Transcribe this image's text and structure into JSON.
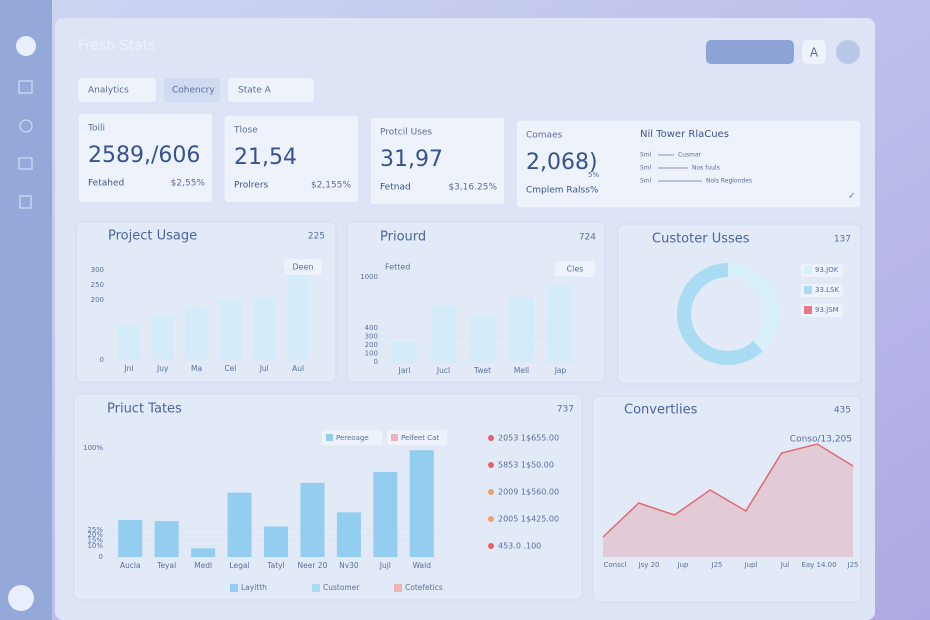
{
  "header": {
    "title": "Fresh Stats",
    "user_button": "A"
  },
  "filters": [
    "Analytics",
    "Cohencry",
    "State A"
  ],
  "kpis": [
    {
      "label": "Toili",
      "value": "2589,/606",
      "sub": "Fetahed",
      "change": "$2,55%"
    },
    {
      "label": "Tlose",
      "value": "21,54",
      "sub": "Prolrers",
      "change": "$2,155%"
    },
    {
      "label": "Protcil Uses",
      "value": "31,97",
      "sub": "Fetnad",
      "change": "$3,16.25%"
    },
    {
      "label": "Comaes",
      "value": "2,068)",
      "sub": "Cmplem Ralss%",
      "note": "5%",
      "side_title": "Nil Tower RlaCues",
      "side_rows": [
        [
          "Sml",
          "Cusmar"
        ],
        [
          "Sml",
          "Nos fuuls"
        ],
        [
          "Sml",
          "Nols Reglondes"
        ]
      ]
    }
  ],
  "usage": {
    "type": "bar",
    "title": "Project Usage",
    "badge": "225",
    "button": "Deen",
    "categories": [
      "Jnl",
      "Juy",
      "Ma",
      "Cel",
      "Jul",
      "Aul"
    ],
    "values": [
      113,
      147,
      177,
      203,
      207,
      283
    ],
    "color": "#d4ecf9",
    "ylim": [
      0,
      300
    ],
    "yticks": [
      0,
      200,
      250,
      300
    ]
  },
  "priourd": {
    "type": "bar",
    "title": "Priourd",
    "badge": "724",
    "button": "Cles",
    "legend": "Fetted",
    "categories": [
      "Jarl",
      "Jucl",
      "Twet",
      "Mell",
      "Jap"
    ],
    "values": [
      247,
      659,
      541,
      765,
      894
    ],
    "color": "#d4ecf9",
    "ylim": [
      0,
      1000
    ],
    "yticks": [
      0,
      100,
      200,
      300,
      400,
      1000
    ]
  },
  "customers": {
    "type": "pie",
    "title": "Custoter Usses",
    "badge": "137",
    "labels": [
      "93.JOK",
      "33.LSK",
      "93.JSM"
    ],
    "values": [
      38,
      62,
      0
    ],
    "colors": [
      "#d8f0fa",
      "#a9dcf3",
      "#e57a86"
    ]
  },
  "tates": {
    "type": "bar",
    "title": "Priuct Tates",
    "badge": "737",
    "chips": [
      "Pereoage",
      "Pelfeet Cat"
    ],
    "categories": [
      "Aucla",
      "Teyal",
      "Medl",
      "Legal",
      "Tatyl",
      "Neer 20",
      "Nv30",
      "Jujl",
      "Wald"
    ],
    "values": [
      34,
      33,
      8,
      59,
      28,
      68,
      41,
      78,
      98
    ],
    "color": "#93cdf0",
    "ylim": [
      0,
      100
    ],
    "yticks": [
      0,
      {
        "value": 10,
        "label": "10%"
      },
      {
        "value": 15,
        "label": "15%"
      },
      {
        "value": 20,
        "label": "20%"
      },
      {
        "value": 25,
        "label": "25%"
      },
      {
        "value": 100,
        "label": "100%"
      }
    ],
    "legend": [
      {
        "name": "Layitth",
        "color": "#93cdf0"
      },
      {
        "name": "Customer",
        "color": "#a9dcf3"
      },
      {
        "name": "Cotefetics",
        "color": "#f0b2b5"
      }
    ],
    "list": [
      {
        "text": "2053 1$655.00",
        "color": "#e5606c"
      },
      {
        "text": "5853 1$50.00",
        "color": "#e5606c"
      },
      {
        "text": "2009 1$560.00",
        "color": "#eca36f"
      },
      {
        "text": "2005 1$425.00",
        "color": "#eca36f"
      },
      {
        "text": "453.0 .100",
        "color": "#e5606c"
      }
    ]
  },
  "convert": {
    "type": "area",
    "title": "Convertlies",
    "badge": "435",
    "label": "Conso/13,205",
    "categories": [
      "Conscl",
      "Jsy 20",
      "Jup",
      "J25",
      "Jupl",
      "Jul",
      "Eay 14.00",
      "J25"
    ],
    "values": [
      20,
      54,
      42,
      67,
      46,
      104,
      113,
      91
    ],
    "color": "#e06a72"
  }
}
